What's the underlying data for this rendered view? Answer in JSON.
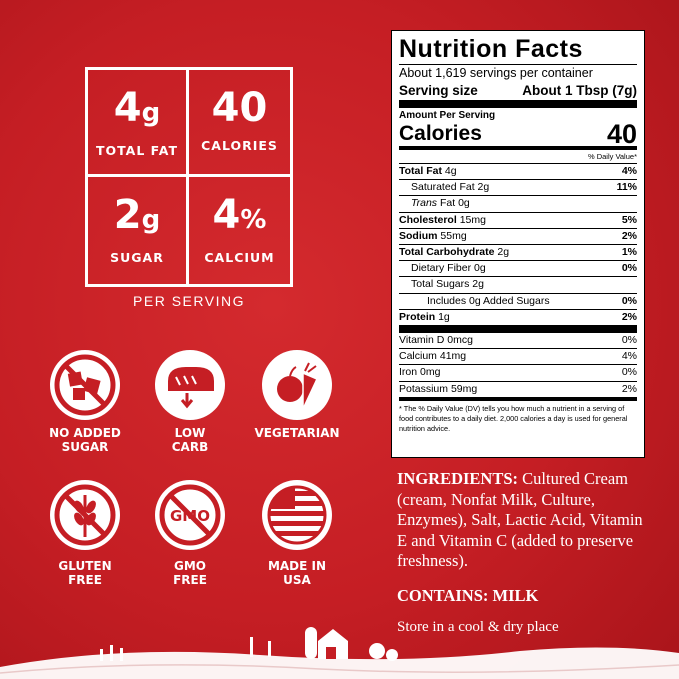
{
  "stats": [
    {
      "number": "4",
      "unit": "g",
      "label": "TOTAL FAT"
    },
    {
      "number": "40",
      "unit": "",
      "label": "CALORIES"
    },
    {
      "number": "2",
      "unit": "g",
      "label": "SUGAR"
    },
    {
      "number": "4",
      "unit": "%",
      "label": "CALCIUM"
    }
  ],
  "per_serving": "PER SERVING",
  "badges": [
    "NO ADDED\nSUGAR",
    "LOW\nCARB",
    "VEGETARIAN",
    "GLUTEN\nFREE",
    "GMO\nFREE",
    "MADE IN\nUSA"
  ],
  "gmo_icon_text": "GMO",
  "nutrition": {
    "title": "Nutrition Facts",
    "servings": "About 1,619 servings per container",
    "serving_size_label": "Serving size",
    "serving_size": "About 1 Tbsp (7g)",
    "amount_per_serving": "Amount Per Serving",
    "calories_label": "Calories",
    "calories": "40",
    "dv_header": "% Daily Value*",
    "rows": [
      {
        "name": "Total Fat",
        "amount": "4g",
        "dv": "4%"
      },
      {
        "name": "Saturated Fat",
        "amount": "2g",
        "dv": "11%"
      },
      {
        "name_italic": "Trans",
        "name": "Fat",
        "amount": "0g"
      },
      {
        "name": "Cholesterol",
        "amount": "15mg",
        "dv": "5%"
      },
      {
        "name": "Sodium",
        "amount": "55mg",
        "dv": "2%"
      },
      {
        "name": "Total Carbohydrate",
        "amount": "2g",
        "dv": "1%"
      },
      {
        "name": "Dietary Fiber",
        "amount": "0g",
        "dv": "0%"
      },
      {
        "name": "Total Sugars",
        "amount": "2g"
      },
      {
        "name": "Includes 0g Added Sugars",
        "dv": "0%"
      },
      {
        "name": "Protein",
        "amount": "1g",
        "dv": "2%"
      },
      {
        "name": "Vitamin D",
        "amount": "0mcg",
        "dv": "0%"
      },
      {
        "name": "Calcium",
        "amount": "41mg",
        "dv": "4%"
      },
      {
        "name": "Iron",
        "amount": "0mg",
        "dv": "0%"
      },
      {
        "name": "Potassium",
        "amount": "59mg",
        "dv": "2%"
      }
    ],
    "footnote": "* The % Daily Value (DV) tells you how much a nutrient in a serving of food contributes to a daily diet. 2,000 calories a day is used for general nutrition advice."
  },
  "ingredients_label": "INGREDIENTS:",
  "ingredients": "Cultured Cream (cream, Nonfat Milk, Culture, Enzymes), Salt, Lactic Acid, Vitamin E and Vitamin C (added to preserve freshness).",
  "contains_label": "CONTAINS:",
  "contains": "MILK",
  "storage": "Store in a cool & dry place"
}
